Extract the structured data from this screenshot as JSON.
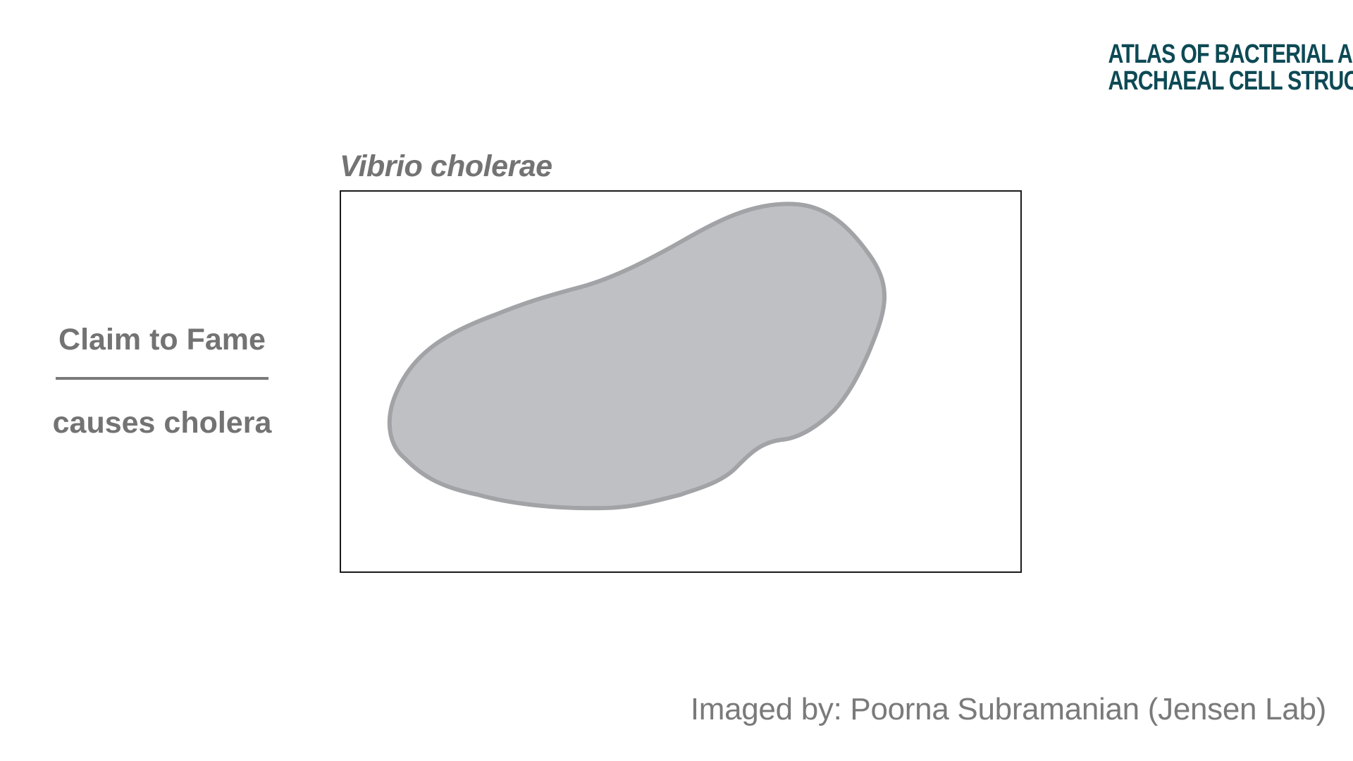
{
  "logo": {
    "line1": "ATLAS OF BACTERIAL AND",
    "line2": "ARCHAEAL CELL STRUCTURE",
    "color": "#0d4a55"
  },
  "species": {
    "name": "Vibrio cholerae"
  },
  "claim": {
    "heading": "Claim to Fame",
    "text": "causes cholera"
  },
  "credit": {
    "text": "Imaged by: Poorna Subramanian (Jensen Lab)"
  },
  "colors": {
    "text_gray": "#737373",
    "cell_fill": "#bfc0c3",
    "cell_outline": "#a2a3a6",
    "frame_border": "#1a1a1a"
  }
}
